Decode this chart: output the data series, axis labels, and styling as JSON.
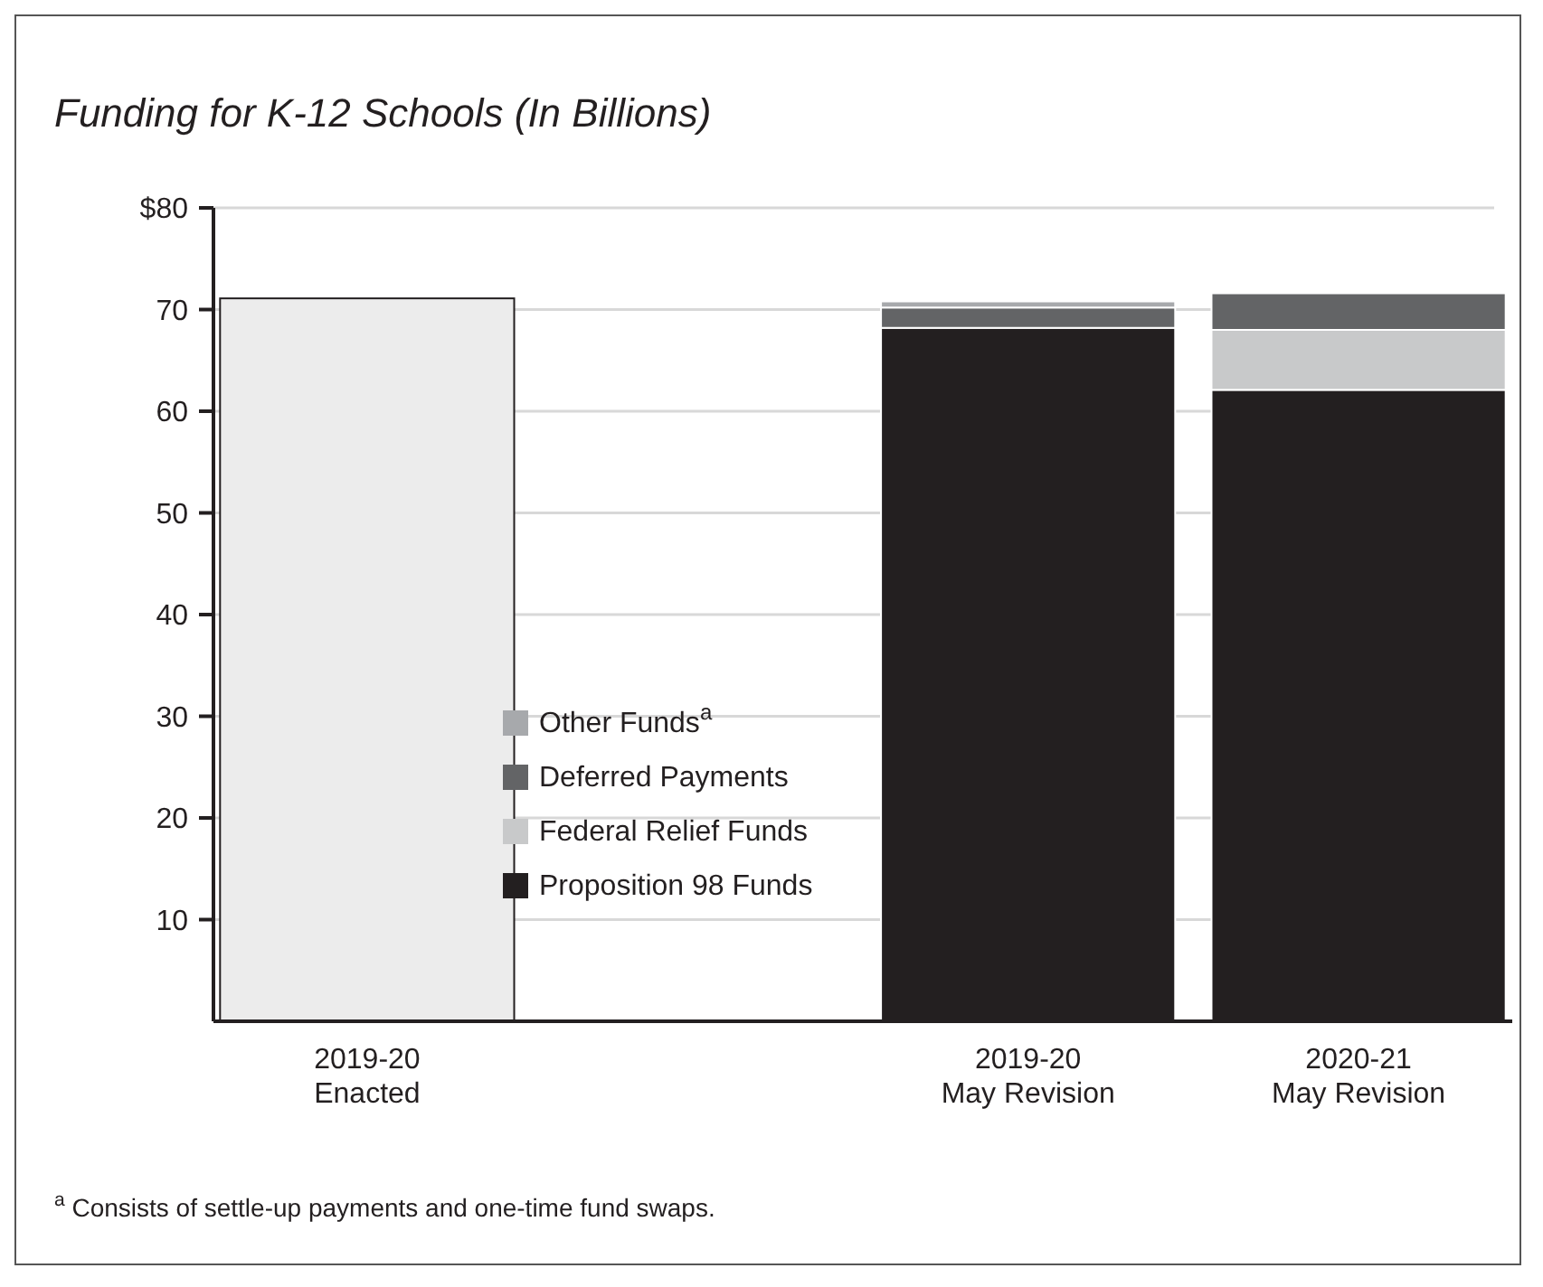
{
  "chart_data": {
    "type": "bar",
    "title": "Funding for K-12 Schools (In Billions)",
    "categories": [
      "2019-20\nEnacted",
      null,
      "2019-20\nMay Revision",
      "2020-21\nMay Revision"
    ],
    "stacked": true,
    "series": [
      {
        "color": "#ececec",
        "values": [
          71.1,
          null,
          null,
          null
        ]
      },
      {
        "name": "Proposition 98 Funds",
        "color": "#231f20",
        "values": [
          null,
          null,
          68.2,
          62.1
        ]
      },
      {
        "name": "Federal Relief Funds",
        "color": "#c8c9ca",
        "values": [
          null,
          null,
          null,
          5.9
        ]
      },
      {
        "name": "Deferred Payments",
        "color": "#636466",
        "values": [
          null,
          null,
          2.0,
          3.6
        ]
      },
      {
        "name": "Other Funds$^{a}$",
        "color": "#a7a9ac",
        "values": [
          null,
          null,
          0.6,
          null
        ]
      }
    ],
    "ylim": [
      0,
      80
    ],
    "yticks": [
      10,
      20,
      30,
      40,
      50,
      60,
      70,
      {
        "value": 80,
        "label": "$80"
      }
    ],
    "grid": "y",
    "legend": "left",
    "annotations": [
      "$^{a}$ Consists of settle-up payments and one-time fund swaps."
    ]
  }
}
